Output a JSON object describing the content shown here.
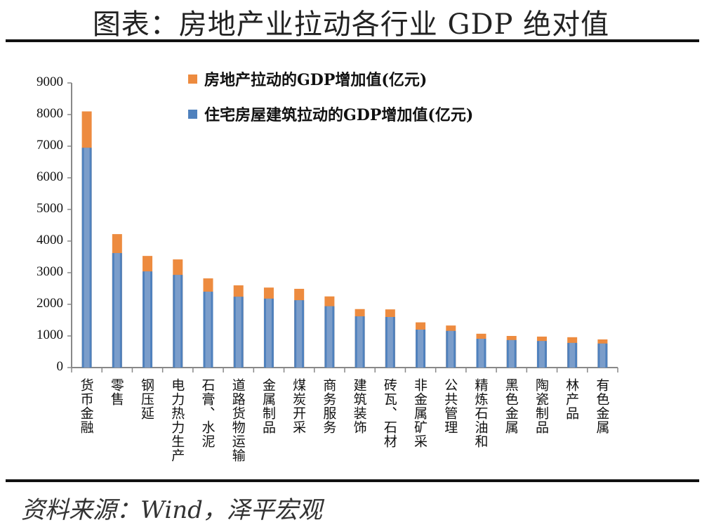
{
  "title": "图表：房地产业拉动各行业 GDP 绝对值",
  "source": "资料来源：Wind，泽平宏观",
  "chart_data": {
    "type": "bar",
    "stacked": "overlay",
    "categories": [
      "货币金融",
      "零售",
      "钢压延",
      "电力热力生产",
      "石膏、水泥",
      "道路货物运输",
      "金属制品",
      "煤炭开采",
      "商务服务",
      "建筑装饰",
      "砖瓦、石材",
      "非金属矿采",
      "公共管理",
      "精炼石油和",
      "黑色金属",
      "陶瓷制品",
      "林产品",
      "有色金属"
    ],
    "series": [
      {
        "name": "房地产拉动的GDP增加值(亿元)",
        "color": "#ED8B3F",
        "values": [
          8100,
          4220,
          3530,
          3420,
          2820,
          2600,
          2530,
          2490,
          2250,
          1850,
          1840,
          1430,
          1330,
          1070,
          1000,
          980,
          960,
          890
        ]
      },
      {
        "name": "住宅房屋建筑拉动的GDP增加值(亿元)",
        "color": "#4F81BD",
        "values": [
          6950,
          3620,
          3040,
          2930,
          2400,
          2240,
          2180,
          2130,
          1940,
          1620,
          1600,
          1200,
          1160,
          910,
          870,
          840,
          780,
          760
        ]
      }
    ],
    "yticks": [
      "0",
      "1000",
      "2000",
      "3000",
      "4000",
      "5000",
      "6000",
      "7000",
      "8000",
      "9000"
    ],
    "ylim": [
      0,
      9000
    ],
    "grid": false,
    "legend_position": "top"
  }
}
